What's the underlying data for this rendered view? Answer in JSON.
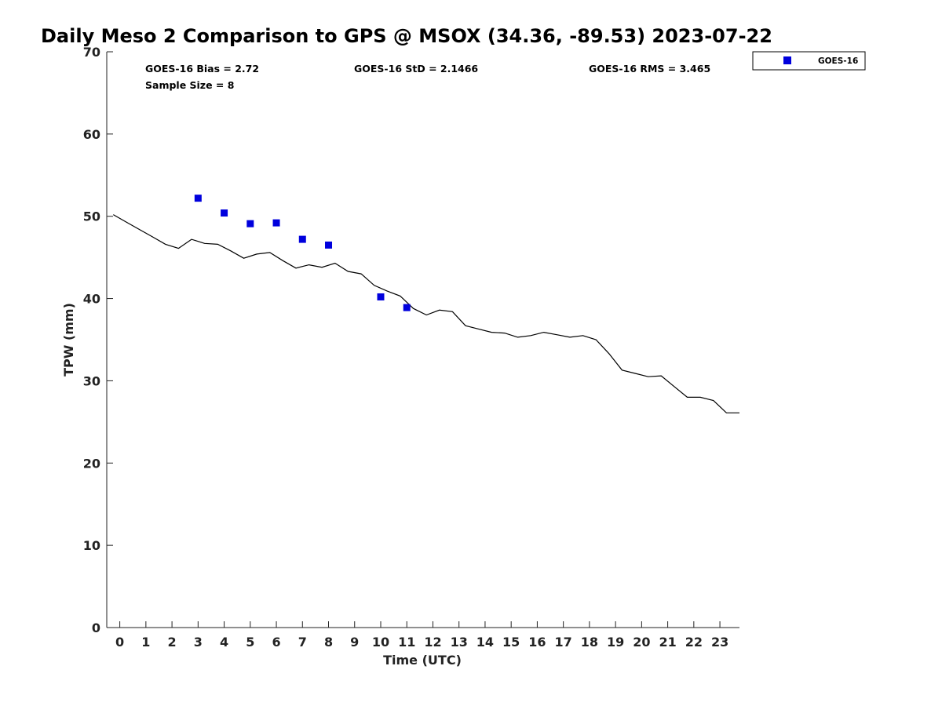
{
  "chart_data": {
    "type": "scatter",
    "title": "Daily Meso 2 Comparison to GPS @ MSOX (34.36, -89.53) 2023-07-22",
    "xlabel": "Time (UTC)",
    "ylabel": "TPW (mm)",
    "xlim": [
      -0.5,
      23.75
    ],
    "ylim": [
      0,
      70
    ],
    "x_ticks": [
      "0",
      "1",
      "2",
      "3",
      "4",
      "5",
      "6",
      "7",
      "8",
      "9",
      "10",
      "11",
      "12",
      "13",
      "14",
      "15",
      "16",
      "17",
      "18",
      "19",
      "20",
      "21",
      "22",
      "23"
    ],
    "y_ticks": [
      "0",
      "10",
      "20",
      "30",
      "40",
      "50",
      "60",
      "70"
    ],
    "grid": false,
    "legend_position": "top-right outside",
    "stats": {
      "bias": "GOES-16 Bias = 2.72",
      "std": "GOES-16 StD = 2.1466",
      "rms": "GOES-16 RMS = 3.465",
      "sample": "Sample Size = 8"
    },
    "series": [
      {
        "name": "GOES-16",
        "kind": "scatter",
        "marker": "square",
        "color": "#0000dd",
        "x": [
          3,
          4,
          5,
          6,
          7,
          8,
          10,
          11
        ],
        "y": [
          52.2,
          50.4,
          49.1,
          49.2,
          47.2,
          46.5,
          40.2,
          38.9
        ]
      },
      {
        "name": "",
        "kind": "line",
        "color": "#000000",
        "x": [
          -0.25,
          0.25,
          0.75,
          1.25,
          1.75,
          2.25,
          2.75,
          3.25,
          3.75,
          4.25,
          4.75,
          5.25,
          5.75,
          6.25,
          6.75,
          7.25,
          7.75,
          8.25,
          8.75,
          9.25,
          9.75,
          10.25,
          10.75,
          11.25,
          11.75,
          12.25,
          12.75,
          13.25,
          13.75,
          14.25,
          14.75,
          15.25,
          15.75,
          16.25,
          16.75,
          17.25,
          17.75,
          18.25,
          18.75,
          19.25,
          19.75,
          20.25,
          20.75,
          21.25,
          21.75,
          22.25,
          22.75,
          23.25,
          23.75
        ],
        "y": [
          50.2,
          49.3,
          48.4,
          47.5,
          46.6,
          46.1,
          47.2,
          46.7,
          46.6,
          45.8,
          44.9,
          45.4,
          45.6,
          44.6,
          43.7,
          44.1,
          43.8,
          44.3,
          43.3,
          43.0,
          41.6,
          40.9,
          40.3,
          38.8,
          38.0,
          38.6,
          38.4,
          36.7,
          36.3,
          35.9,
          35.8,
          35.3,
          35.5,
          35.9,
          35.6,
          35.3,
          35.5,
          35.0,
          33.3,
          31.3,
          30.9,
          30.5,
          30.6,
          29.3,
          28.0,
          28.0,
          27.6,
          26.1,
          26.1
        ]
      }
    ]
  }
}
